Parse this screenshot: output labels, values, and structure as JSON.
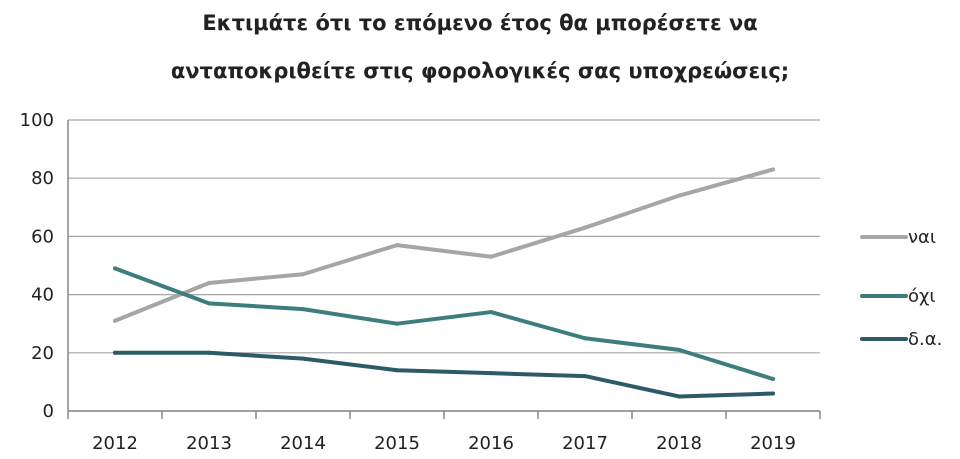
{
  "chart_data": {
    "type": "line",
    "title_lines": [
      "Εκτιμάτε ότι το επόμενο έτος θα μπορέσετε να",
      "ανταποκριθείτε στις φορολογικές σας υποχρεώσεις;"
    ],
    "xlabel": "",
    "ylabel": "",
    "categories": [
      "2012",
      "2013",
      "2014",
      "2015",
      "2016",
      "2017",
      "2018",
      "2019"
    ],
    "ylim": [
      0,
      100
    ],
    "yticks": [
      0,
      20,
      40,
      60,
      80,
      100
    ],
    "grid": true,
    "legend_position": "right",
    "series": [
      {
        "name": "ναι",
        "color": "#a6a6a6",
        "values": [
          31,
          44,
          47,
          57,
          53,
          63,
          74,
          83
        ]
      },
      {
        "name": "όχι",
        "color": "#3e7d7d",
        "values": [
          49,
          37,
          35,
          30,
          34,
          25,
          21,
          11
        ]
      },
      {
        "name": "δ.α.",
        "color": "#2c5a66",
        "values": [
          20,
          20,
          18,
          14,
          13,
          12,
          5,
          6
        ]
      }
    ]
  }
}
